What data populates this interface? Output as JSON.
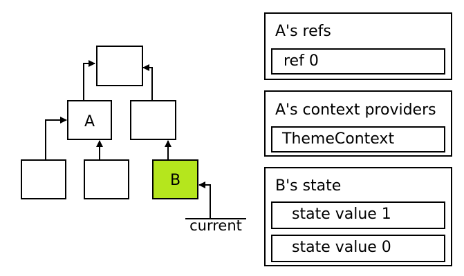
{
  "tree": {
    "nodes": [
      {
        "id": "root",
        "label": ""
      },
      {
        "id": "a",
        "label": "A"
      },
      {
        "id": "right",
        "label": ""
      },
      {
        "id": "a-child-1",
        "label": ""
      },
      {
        "id": "a-child-2",
        "label": ""
      },
      {
        "id": "b",
        "label": "B",
        "highlighted": true
      }
    ],
    "edges": [
      {
        "from": "a",
        "to": "root"
      },
      {
        "from": "right",
        "to": "root"
      },
      {
        "from": "a-child-1",
        "to": "a"
      },
      {
        "from": "a-child-2",
        "to": "a"
      },
      {
        "from": "b",
        "to": "right"
      }
    ],
    "current_label": "current",
    "highlight_color": "#b5e61d"
  },
  "panels": {
    "refs": {
      "title": "A's refs",
      "items": [
        "ref 0"
      ]
    },
    "context": {
      "title": "A's context providers",
      "items": [
        "ThemeContext"
      ]
    },
    "state": {
      "title": "B's state",
      "items": [
        "state value 1",
        "state value 0"
      ]
    }
  }
}
